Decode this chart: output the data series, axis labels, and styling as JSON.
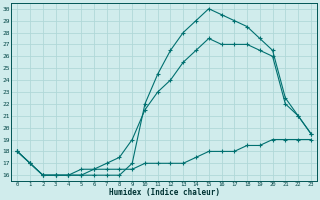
{
  "xlabel": "Humidex (Indice chaleur)",
  "bg_color": "#d0ecec",
  "grid_color": "#b0d8d8",
  "line_color": "#007070",
  "xlim": [
    -0.5,
    23.5
  ],
  "ylim": [
    15.5,
    30.5
  ],
  "xticks": [
    0,
    1,
    2,
    3,
    4,
    5,
    6,
    7,
    8,
    9,
    10,
    11,
    12,
    13,
    14,
    15,
    16,
    17,
    18,
    19,
    20,
    21,
    22,
    23
  ],
  "yticks": [
    16,
    17,
    18,
    19,
    20,
    21,
    22,
    23,
    24,
    25,
    26,
    27,
    28,
    29,
    30
  ],
  "line1_x": [
    0,
    1,
    2,
    3,
    4,
    5,
    6,
    7,
    8,
    9,
    10,
    11,
    12,
    13,
    14,
    15,
    16,
    17,
    18,
    19,
    20,
    21,
    22,
    23
  ],
  "line1_y": [
    18.0,
    17.0,
    16.0,
    16.0,
    16.0,
    16.5,
    16.5,
    16.5,
    16.5,
    16.5,
    17.0,
    17.0,
    17.0,
    17.0,
    17.5,
    18.0,
    18.0,
    18.0,
    18.5,
    18.5,
    19.0,
    19.0,
    19.0,
    19.0
  ],
  "line2_x": [
    0,
    1,
    2,
    3,
    4,
    5,
    6,
    7,
    8,
    9,
    10,
    11,
    12,
    13,
    14,
    15,
    16,
    17,
    18,
    19,
    20,
    21,
    22,
    23
  ],
  "line2_y": [
    18.0,
    17.0,
    16.0,
    16.0,
    16.0,
    16.0,
    16.5,
    17.0,
    17.5,
    19.0,
    21.5,
    23.0,
    24.0,
    25.5,
    26.5,
    27.5,
    27.0,
    27.0,
    27.0,
    26.5,
    26.0,
    22.0,
    21.0,
    19.5
  ],
  "line3_x": [
    0,
    1,
    2,
    3,
    4,
    5,
    6,
    7,
    8,
    9,
    10,
    11,
    12,
    13,
    14,
    15,
    16,
    17,
    18,
    19,
    20,
    21,
    22,
    23
  ],
  "line3_y": [
    18.0,
    17.0,
    16.0,
    16.0,
    16.0,
    16.0,
    16.0,
    16.0,
    16.0,
    17.0,
    22.0,
    24.5,
    26.5,
    28.0,
    29.0,
    30.0,
    29.5,
    29.0,
    28.5,
    27.5,
    26.5,
    22.5,
    21.0,
    19.5
  ]
}
